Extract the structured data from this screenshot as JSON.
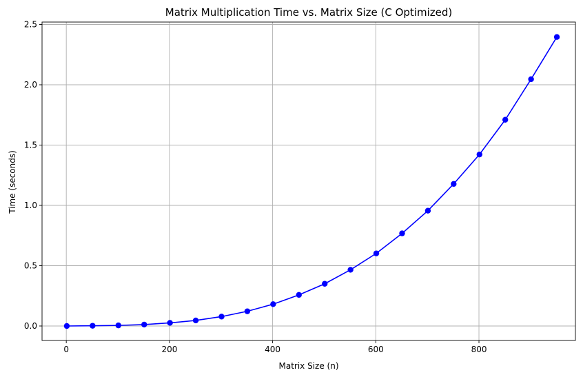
{
  "chart_data": {
    "type": "line",
    "title": "Matrix Multiplication Time vs. Matrix Size (C Optimized)",
    "xlabel": "Matrix Size (n)",
    "ylabel": "Time (seconds)",
    "xlim": [
      -47,
      987
    ],
    "ylim": [
      -0.12,
      2.52
    ],
    "xticks": [
      0,
      200,
      400,
      600,
      800
    ],
    "xtick_labels": [
      "0",
      "200",
      "400",
      "600",
      "800"
    ],
    "yticks": [
      0.0,
      0.5,
      1.0,
      1.5,
      2.0,
      2.5
    ],
    "ytick_labels": [
      "0.0",
      "0.5",
      "1.0",
      "1.5",
      "2.0",
      "2.5"
    ],
    "grid": true,
    "line_color": "#0000ff",
    "marker": "circle",
    "series": [
      {
        "x": [
          1,
          51,
          101,
          151,
          201,
          251,
          301,
          351,
          401,
          451,
          501,
          551,
          601,
          651,
          701,
          751,
          801,
          851,
          901,
          951
        ],
        "values": [
          0.0,
          0.002,
          0.005,
          0.012,
          0.026,
          0.046,
          0.078,
          0.122,
          0.181,
          0.258,
          0.35,
          0.466,
          0.602,
          0.768,
          0.956,
          1.178,
          1.422,
          1.71,
          2.046,
          2.396
        ]
      }
    ]
  }
}
